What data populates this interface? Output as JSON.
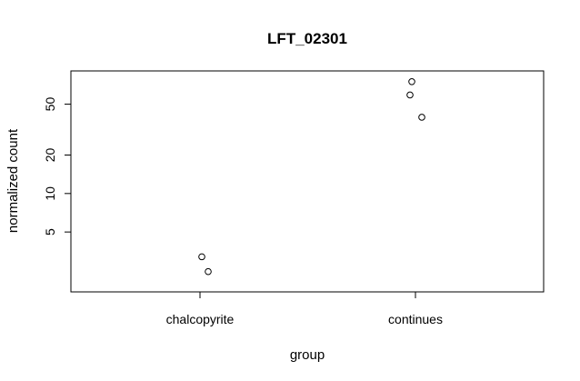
{
  "chart_data": {
    "type": "scatter",
    "title": "LFT_02301",
    "xlabel": "group",
    "ylabel": "normalized count",
    "categories": [
      "chalcopyrite",
      "continues"
    ],
    "y_scale": "log",
    "y_ticks": [
      5,
      10,
      20,
      50
    ],
    "ylim": [
      1.7,
      91
    ],
    "grid": false,
    "legend": "none",
    "points": [
      {
        "category": "chalcopyrite",
        "value": 3.2
      },
      {
        "category": "chalcopyrite",
        "value": 2.45
      },
      {
        "category": "continues",
        "value": 75
      },
      {
        "category": "continues",
        "value": 59
      },
      {
        "category": "continues",
        "value": 39.5
      }
    ]
  }
}
